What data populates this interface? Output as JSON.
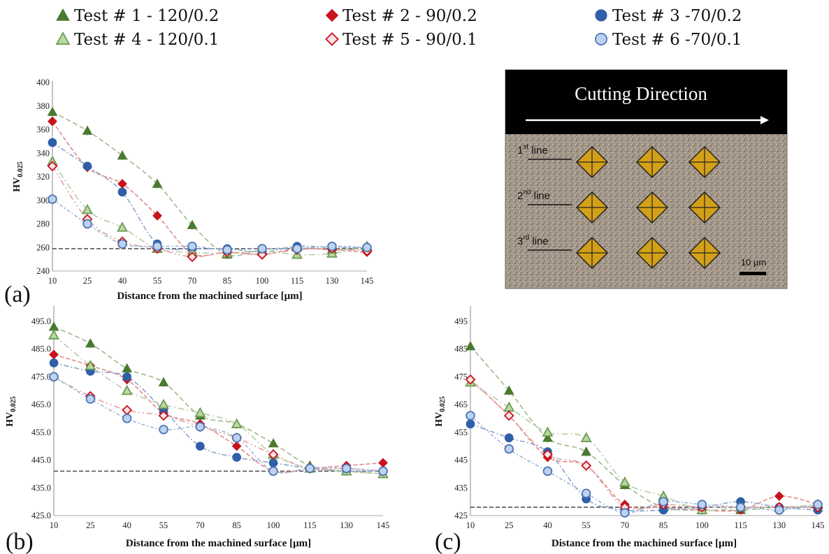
{
  "legend": [
    {
      "label": "Test # 1 - 120/0.2",
      "marker": "triangle",
      "filled": true,
      "color": "#4a7a2f",
      "line_color": "#9fb98a"
    },
    {
      "label": "Test # 2 - 90/0.2",
      "marker": "diamond",
      "filled": true,
      "color": "#c8121c",
      "line_color": "#e08a8a"
    },
    {
      "label": "Test # 3 -70/0.2",
      "marker": "circle",
      "filled": true,
      "color": "#2f5fa8",
      "line_color": "#8aa4cc"
    },
    {
      "label": "Test # 4 - 120/0.1",
      "marker": "triangle",
      "filled": false,
      "color": "#b8d9a0",
      "stroke": "#6f9a57",
      "line_color": "#b7cca6"
    },
    {
      "label": "Test # 5 - 90/0.1",
      "marker": "diamond",
      "filled": false,
      "color": "#fbe3e3",
      "stroke": "#c8121c",
      "line_color": "#e0a0a0"
    },
    {
      "label": "Test # 6 -70/0.1",
      "marker": "circle",
      "filled": false,
      "color": "#bcd3f0",
      "stroke": "#4f74b3",
      "line_color": "#9db4d8"
    }
  ],
  "inset": {
    "title": "Cutting Direction",
    "lines": [
      {
        "num": "1",
        "sup": "st",
        "text": " line"
      },
      {
        "num": "2",
        "sup": "nd",
        "text": " line"
      },
      {
        "num": "3",
        "sup": "rd",
        "text": " line"
      }
    ],
    "scale_label": "10 μm",
    "indent_color": "#d4a017",
    "surface_color": "#a3978a"
  },
  "chart_data": [
    {
      "id": "a",
      "type": "scatter",
      "panel_label": "(a)",
      "ylabel_main": "HV",
      "ylabel_sub": "0.025",
      "xlabel": "Distance from the machined surface [μm]",
      "x": [
        10,
        25,
        40,
        55,
        70,
        85,
        100,
        115,
        130,
        145
      ],
      "ylim": [
        240,
        400
      ],
      "yticks": [
        240,
        260,
        280,
        300,
        320,
        340,
        360,
        380,
        400
      ],
      "ytick_labels": [
        "240",
        "260",
        "280",
        "300",
        "320",
        "340",
        "360",
        "380",
        "400"
      ],
      "baseline": 259,
      "series": [
        {
          "name": "Test # 1 - 120/0.2",
          "values": [
            375,
            359,
            338,
            314,
            279,
            254,
            258,
            260,
            258,
            260
          ]
        },
        {
          "name": "Test # 2 - 90/0.2",
          "values": [
            367,
            328,
            314,
            287,
            255,
            256,
            254,
            259,
            258,
            256
          ]
        },
        {
          "name": "Test # 3 -70/0.2",
          "values": [
            349,
            329,
            307,
            263,
            259,
            259,
            256,
            261,
            260,
            260
          ]
        },
        {
          "name": "Test # 4 - 120/0.1",
          "values": [
            333,
            292,
            277,
            259,
            256,
            255,
            257,
            254,
            255,
            261
          ]
        },
        {
          "name": "Test # 5 - 90/0.1",
          "values": [
            329,
            284,
            265,
            259,
            252,
            256,
            254,
            258,
            259,
            257
          ]
        },
        {
          "name": "Test # 6 -70/0.1",
          "values": [
            301,
            280,
            263,
            261,
            261,
            258,
            259,
            259,
            261,
            260
          ]
        }
      ]
    },
    {
      "id": "b",
      "type": "scatter",
      "panel_label": "(b)",
      "ylabel_main": "HV",
      "ylabel_sub": "0.025",
      "xlabel": "Distance from the machined surface [μm]",
      "x": [
        10,
        25,
        40,
        55,
        70,
        85,
        100,
        115,
        130,
        145
      ],
      "ylim": [
        425,
        500
      ],
      "yticks": [
        425,
        435,
        445,
        455,
        465,
        475,
        485,
        495
      ],
      "ytick_labels": [
        "425.0",
        "435.0",
        "445.0",
        "455.0",
        "465.0",
        "475.0",
        "485.0",
        "495.0"
      ],
      "baseline": 441,
      "series": [
        {
          "name": "Test # 1 - 120/0.2",
          "values": [
            493,
            487,
            478,
            473,
            461,
            458,
            451,
            443,
            441,
            440
          ]
        },
        {
          "name": "Test # 2 - 90/0.2",
          "values": [
            483,
            479,
            474,
            462,
            458,
            450,
            441,
            442,
            443,
            444
          ]
        },
        {
          "name": "Test # 3 -70/0.2",
          "values": [
            480,
            477,
            475,
            463,
            450,
            446,
            444,
            442,
            441,
            441
          ]
        },
        {
          "name": "Test # 4 - 120/0.1",
          "values": [
            490,
            479,
            470,
            465,
            462,
            458,
            447,
            442,
            441,
            440
          ]
        },
        {
          "name": "Test # 5 - 90/0.1",
          "values": [
            475,
            468,
            463,
            461,
            457,
            453,
            447,
            442,
            442,
            441
          ]
        },
        {
          "name": "Test # 6 -70/0.1",
          "values": [
            475,
            467,
            460,
            456,
            457,
            453,
            441,
            442,
            442,
            441
          ]
        }
      ]
    },
    {
      "id": "c",
      "type": "scatter",
      "panel_label": "(c)",
      "ylabel_main": "HV",
      "ylabel_sub": "0.025",
      "xlabel": "Distance from the machined surface [μm]",
      "x": [
        10,
        25,
        40,
        55,
        70,
        85,
        100,
        115,
        130,
        145
      ],
      "ylim": [
        425,
        500
      ],
      "yticks": [
        425,
        435,
        445,
        455,
        465,
        475,
        485,
        495
      ],
      "ytick_labels": [
        "425",
        "435",
        "445",
        "455",
        "465",
        "475",
        "485",
        "495"
      ],
      "baseline": 428,
      "series": [
        {
          "name": "Test # 1 - 120/0.2",
          "values": [
            486,
            470,
            453,
            448,
            436,
            428,
            427,
            427,
            428,
            428
          ]
        },
        {
          "name": "Test # 2 - 90/0.2",
          "values": [
            474,
            461,
            446,
            443,
            429,
            428,
            427,
            427,
            432,
            429
          ]
        },
        {
          "name": "Test # 3 -70/0.2",
          "values": [
            458,
            453,
            448,
            431,
            427,
            427,
            428,
            430,
            428,
            427
          ]
        },
        {
          "name": "Test # 4 - 120/0.1",
          "values": [
            473,
            464,
            455,
            453,
            437,
            432,
            427,
            428,
            428,
            429
          ]
        },
        {
          "name": "Test # 5 - 90/0.1",
          "values": [
            474,
            461,
            447,
            443,
            428,
            429,
            428,
            428,
            428,
            428
          ]
        },
        {
          "name": "Test # 6 -70/0.1",
          "values": [
            461,
            449,
            441,
            433,
            426,
            430,
            429,
            428,
            427,
            429
          ]
        }
      ]
    }
  ]
}
